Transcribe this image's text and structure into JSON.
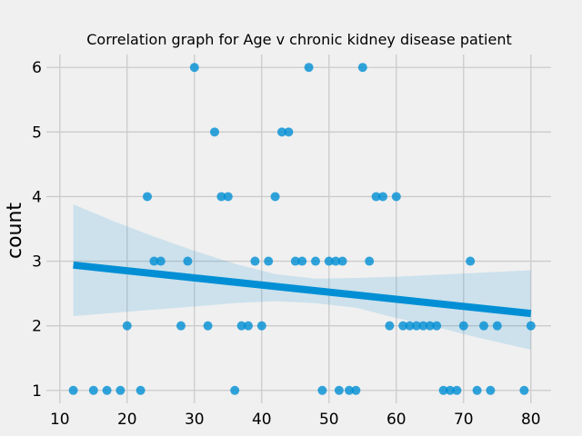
{
  "chart_data": {
    "type": "scatter",
    "title": "Correlation graph for Age v chronic kidney disease patient",
    "xlabel": "",
    "ylabel": "count",
    "xlim": [
      8,
      83
    ],
    "ylim": [
      0.8,
      6.2
    ],
    "xticks": [
      10,
      20,
      30,
      40,
      50,
      60,
      70,
      80
    ],
    "yticks": [
      1,
      2,
      3,
      4,
      5,
      6
    ],
    "grid": true,
    "points": [
      [
        12,
        1
      ],
      [
        15,
        1
      ],
      [
        17,
        1
      ],
      [
        19,
        1
      ],
      [
        20,
        2
      ],
      [
        22,
        1
      ],
      [
        23,
        4
      ],
      [
        24,
        3
      ],
      [
        25,
        3
      ],
      [
        28,
        2
      ],
      [
        29,
        3
      ],
      [
        30,
        6
      ],
      [
        32,
        2
      ],
      [
        33,
        5
      ],
      [
        34,
        4
      ],
      [
        35,
        4
      ],
      [
        36,
        1
      ],
      [
        37,
        2
      ],
      [
        38,
        2
      ],
      [
        39,
        3
      ],
      [
        40,
        2
      ],
      [
        41,
        3
      ],
      [
        42,
        4
      ],
      [
        43,
        5
      ],
      [
        44,
        5
      ],
      [
        45,
        3
      ],
      [
        46,
        3
      ],
      [
        47,
        6
      ],
      [
        48,
        3
      ],
      [
        49,
        1
      ],
      [
        50,
        3
      ],
      [
        51,
        3
      ],
      [
        51.5,
        1
      ],
      [
        52,
        3
      ],
      [
        53,
        1
      ],
      [
        54,
        1
      ],
      [
        55,
        6
      ],
      [
        56,
        3
      ],
      [
        57,
        4
      ],
      [
        58,
        4
      ],
      [
        59,
        2
      ],
      [
        60,
        4
      ],
      [
        61,
        2
      ],
      [
        62,
        2
      ],
      [
        63,
        2
      ],
      [
        64,
        2
      ],
      [
        65,
        2
      ],
      [
        66,
        2
      ],
      [
        67,
        1
      ],
      [
        68,
        1
      ],
      [
        69,
        1
      ],
      [
        70,
        2
      ],
      [
        71,
        3
      ],
      [
        72,
        1
      ],
      [
        73,
        2
      ],
      [
        74,
        1
      ],
      [
        75,
        2
      ],
      [
        79,
        1
      ],
      [
        80,
        2
      ]
    ],
    "regression": {
      "x": [
        12,
        80
      ],
      "y": [
        2.94,
        2.19
      ]
    },
    "confidence_band": {
      "x": [
        12,
        18,
        24,
        30,
        36,
        42,
        48,
        54,
        60,
        66,
        72,
        80
      ],
      "lower": [
        2.15,
        2.2,
        2.25,
        2.3,
        2.35,
        2.38,
        2.35,
        2.28,
        2.12,
        1.98,
        1.82,
        1.63
      ],
      "upper": [
        3.88,
        3.62,
        3.38,
        3.16,
        2.96,
        2.8,
        2.73,
        2.74,
        2.76,
        2.79,
        2.82,
        2.86
      ]
    }
  }
}
